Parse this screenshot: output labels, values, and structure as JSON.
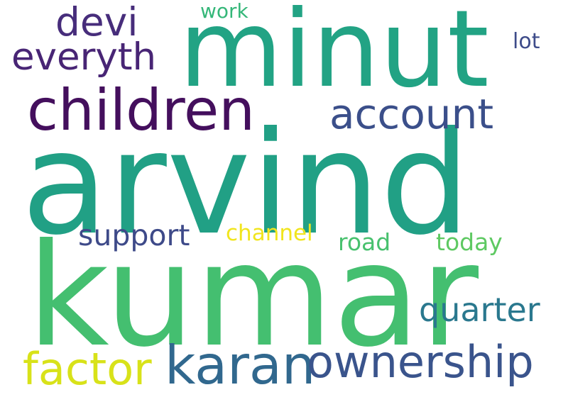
{
  "words": [
    {
      "text": "arvind",
      "color": "#21a085"
    },
    {
      "text": "kumar",
      "color": "#44bf70"
    },
    {
      "text": "minut",
      "color": "#22a384"
    },
    {
      "text": "children",
      "color": "#440f5d"
    },
    {
      "text": "account",
      "color": "#3b4f8a"
    },
    {
      "text": "everyth",
      "color": "#482575"
    },
    {
      "text": "devi",
      "color": "#472d7b"
    },
    {
      "text": "support",
      "color": "#3e4a89"
    },
    {
      "text": "channel",
      "color": "#f1e51d"
    },
    {
      "text": "road",
      "color": "#48c16e"
    },
    {
      "text": "today",
      "color": "#5ec962"
    },
    {
      "text": "quarter",
      "color": "#2a788e"
    },
    {
      "text": "factor",
      "color": "#d8e219"
    },
    {
      "text": "karan",
      "color": "#31688e"
    },
    {
      "text": "ownership",
      "color": "#3a548c"
    },
    {
      "text": "work",
      "color": "#35b779"
    },
    {
      "text": "lot",
      "color": "#3e4c8a"
    }
  ]
}
